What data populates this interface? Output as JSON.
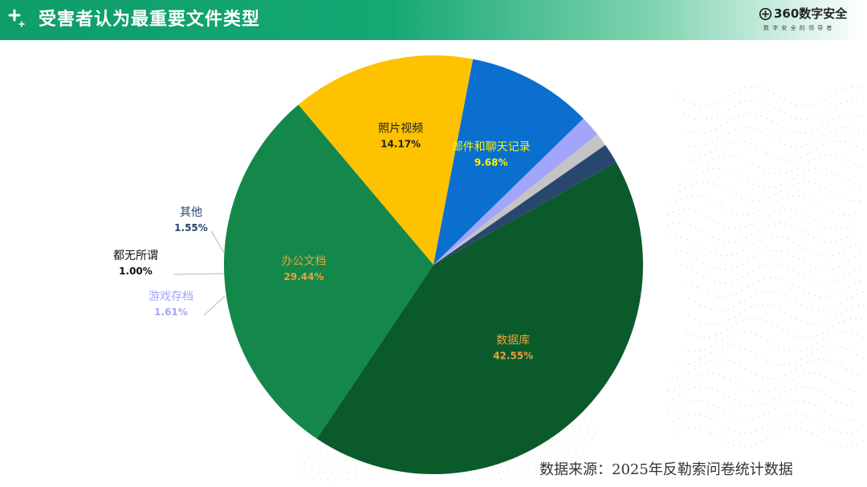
{
  "header": {
    "title": "受害者认为最重要文件类型",
    "brand_name": "360数字安全",
    "brand_slogan": "数字安全的领导者",
    "accent_color": "#12a06c"
  },
  "footer": {
    "source": "数据来源：2025年反勒索问卷统计数据"
  },
  "chart_data": {
    "type": "pie",
    "title": "",
    "slices": [
      {
        "label": "数据库",
        "value": 42.55,
        "value_label": "42.55%",
        "color": "#0b5a2b",
        "text_color": "#e8a33c"
      },
      {
        "label": "办公文档",
        "value": 29.44,
        "value_label": "29.44%",
        "color": "#14874a",
        "text_color": "#e8a33c"
      },
      {
        "label": "照片视频",
        "value": 14.17,
        "value_label": "14.17%",
        "color": "#fec200",
        "text_color": "#222222"
      },
      {
        "label": "邮件和聊天记录",
        "value": 9.68,
        "value_label": "9.68%",
        "color": "#0a6fcf",
        "text_color": "#fff200"
      },
      {
        "label": "游戏存档",
        "value": 1.61,
        "value_label": "1.61%",
        "color": "#a3a5fb",
        "text_color": "#a3a5fb"
      },
      {
        "label": "都无所谓",
        "value": 1.0,
        "value_label": "1.00%",
        "color": "#c4c4c4",
        "text_color": "#111111"
      },
      {
        "label": "其他",
        "value": 1.55,
        "value_label": "1.55%",
        "color": "#28476f",
        "text_color": "#28476f"
      }
    ]
  }
}
